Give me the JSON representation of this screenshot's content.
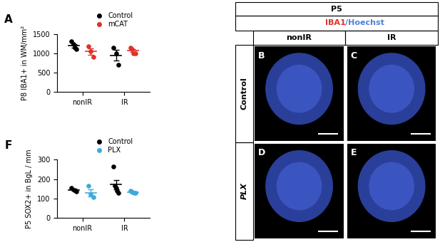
{
  "chart_data": [
    {
      "type": "scatter",
      "title": "A",
      "y_label": "P8 IBA1+ in WM/mm²",
      "categories": [
        "nonIR",
        "IR"
      ],
      "ylim": [
        0,
        1500
      ],
      "yticks": [
        0,
        500,
        1000,
        1500
      ],
      "legend": "upper center",
      "grid": false,
      "series": [
        {
          "name": "Control",
          "color": "#000000",
          "values": [
            [
              1300,
              1230,
              1150,
              1100
            ],
            [
              1150,
              1000,
              700
            ]
          ],
          "mean": [
            1195,
            950
          ],
          "error": [
            45,
            132
          ]
        },
        {
          "name": "mCAT",
          "color": "#e0312b",
          "values": [
            [
              1180,
              1050,
              900
            ],
            [
              1150,
              1100,
              1000,
              1000
            ]
          ],
          "mean": [
            1043,
            1062
          ],
          "error": [
            81,
            37
          ]
        }
      ]
    },
    {
      "type": "scatter",
      "title": "F",
      "y_label": "P5 SOX2+ in BgL / mm",
      "categories": [
        "nonIR",
        "IR"
      ],
      "ylim": [
        0,
        300
      ],
      "yticks": [
        0,
        100,
        200,
        300
      ],
      "legend": "upper center",
      "grid": false,
      "series": [
        {
          "name": "Control",
          "color": "#000000",
          "values": [
            [
              155,
              145,
              135
            ],
            [
              265,
              165,
              155,
              140,
              130
            ]
          ],
          "mean": [
            145,
            171
          ],
          "error": [
            6,
            25
          ]
        },
        {
          "name": "PLX",
          "color": "#3fa9d9",
          "values": [
            [
              165,
              120,
              105
            ],
            [
              140,
              135,
              133,
              130,
              128
            ]
          ],
          "mean": [
            130,
            133
          ],
          "error": [
            18,
            2
          ]
        }
      ]
    }
  ],
  "image_panel": {
    "header": "P5",
    "stain": [
      {
        "text": "IBA1",
        "color": "#e0312b"
      },
      {
        "text": "/Hoechst",
        "color": "#4f7fd9"
      }
    ],
    "columns": [
      "nonIR",
      "IR"
    ],
    "rows": [
      "Control",
      "PLX"
    ],
    "images": [
      [
        "B",
        "C"
      ],
      [
        "D",
        "E"
      ]
    ]
  }
}
